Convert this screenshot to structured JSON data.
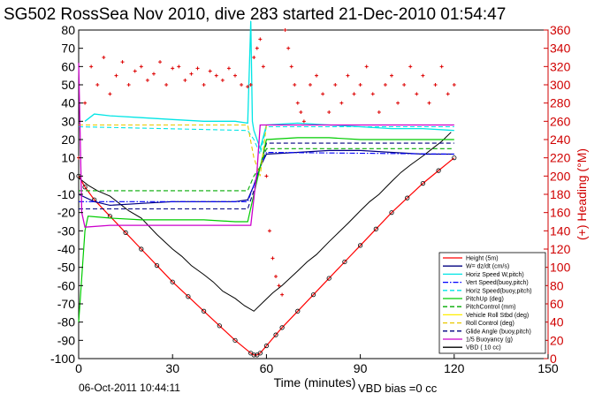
{
  "figure": {
    "title": "SG502 RossSea Nov 2010, dive 283 started 21-Dec-2010 01:54:47",
    "footer_date": "06-Oct-2011 10:44:11",
    "footer_note": "VBD bias =0 cc"
  },
  "chart_data": {
    "type": "line",
    "xlabel": "Time (minutes)",
    "ylabel": "",
    "y2label": "(+) Heading (°M)",
    "xlim": [
      0,
      150
    ],
    "ylim": [
      -100,
      80
    ],
    "y2lim": [
      0,
      360
    ],
    "xticks": [
      "0",
      "30",
      "60",
      "90",
      "120",
      "150"
    ],
    "yticks": [
      "80",
      "70",
      "60",
      "50",
      "40",
      "30",
      "20",
      "10",
      "0",
      "-10",
      "-20",
      "-30",
      "-40",
      "-50",
      "-60",
      "-70",
      "-80",
      "-90",
      "-100"
    ],
    "y2ticks": [
      "360",
      "340",
      "320",
      "300",
      "280",
      "260",
      "240",
      "220",
      "200",
      "180",
      "160",
      "140",
      "120",
      "100",
      "80",
      "60",
      "40",
      "20",
      "0"
    ],
    "grid": false,
    "legend_position": "bottom-right",
    "colors": {
      "height": "#ff0000",
      "w": "#000080",
      "horiz_speed": "#00e5e5",
      "vert_speed_buoy": "#0000ff",
      "horiz_speed_buoy": "#00e5e5",
      "pitch_up": "#00cc00",
      "pitch_control": "#00aa00",
      "roll": "#ffee00",
      "roll_control": "#e8c800",
      "glide_angle": "#000080",
      "buoyancy": "#cc00cc",
      "vbd": "#000000",
      "heading": "#dd0000",
      "right_axis": "#d00000"
    },
    "legend": [
      {
        "name": "Height (5m)",
        "style": "solid",
        "color": "#ff0000"
      },
      {
        "name": "W= dz/dt (cm/s)",
        "style": "solid",
        "color": "#000080"
      },
      {
        "name": "Horiz Speed W,pitch)",
        "style": "solid",
        "color": "#00e5e5"
      },
      {
        "name": "Vert Speed(buoy,pitch)",
        "style": "dashdot",
        "color": "#0000ff"
      },
      {
        "name": "Horiz Speed(buoy,pitch)",
        "style": "dashed",
        "color": "#00e5e5"
      },
      {
        "name": "PitchUp (deg)",
        "style": "solid",
        "color": "#00cc00"
      },
      {
        "name": "PitchControl (mm)",
        "style": "dashed",
        "color": "#00aa00"
      },
      {
        "name": "Vehicle Roll Stbd (deg)",
        "style": "solid",
        "color": "#ffee00"
      },
      {
        "name": "Roll Control (deg)",
        "style": "dashed",
        "color": "#e8c800"
      },
      {
        "name": "Glide Angle (buoy,pitch)",
        "style": "dashed",
        "color": "#000080"
      },
      {
        "name": "1/5 Buoyancy (g)",
        "style": "solid",
        "color": "#cc00cc"
      },
      {
        "name": "VBD ( 10 cc)",
        "style": "solid",
        "color": "#000000"
      }
    ],
    "series": [
      {
        "key": "height",
        "x": [
          0,
          2,
          5,
          10,
          15,
          20,
          25,
          30,
          35,
          40,
          45,
          50,
          55,
          56,
          57,
          58,
          60,
          63,
          65,
          70,
          75,
          80,
          85,
          90,
          95,
          100,
          105,
          110,
          115,
          120
        ],
        "y": [
          0,
          -6,
          -13,
          -22,
          -31,
          -40,
          -49,
          -58,
          -66,
          -74,
          -82,
          -90,
          -97,
          -98,
          -98,
          -97,
          -93,
          -87,
          -83,
          -74,
          -65,
          -56,
          -47,
          -38,
          -29,
          -20,
          -12,
          -4,
          3,
          10
        ]
      },
      {
        "key": "vbd",
        "x": [
          0,
          3,
          6,
          10,
          13,
          16,
          20,
          25,
          30,
          33,
          36,
          40,
          43,
          46,
          50,
          53,
          56,
          59,
          62,
          65,
          70,
          73,
          76,
          80,
          83,
          86,
          90,
          93,
          96,
          100,
          103,
          106,
          110,
          113,
          116,
          119
        ],
        "y": [
          -1,
          -5,
          -8,
          -11,
          -15,
          -19,
          -23,
          -32,
          -40,
          -44,
          -49,
          -54,
          -58,
          -63,
          -67,
          -71,
          -74,
          -69,
          -64,
          -60,
          -52,
          -47,
          -43,
          -36,
          -31,
          -26,
          -19,
          -14,
          -10,
          -3,
          2,
          6,
          11,
          15,
          19,
          24
        ]
      },
      {
        "key": "horiz_speed",
        "x": [
          2,
          5,
          10,
          20,
          30,
          40,
          50,
          54,
          55,
          55.5,
          56,
          58,
          60,
          70,
          80,
          90,
          100,
          110,
          120
        ],
        "y": [
          30,
          34,
          33,
          32,
          31,
          30,
          30,
          29,
          85,
          30,
          25,
          15,
          28,
          29,
          28,
          27,
          26,
          26,
          25
        ]
      },
      {
        "key": "horiz_speed_buoy",
        "x": [
          0,
          54,
          56,
          58,
          60,
          120
        ],
        "y": [
          27,
          25,
          20,
          12,
          27,
          27
        ]
      },
      {
        "key": "w",
        "x": [
          0,
          5,
          10,
          20,
          30,
          40,
          50,
          54,
          56,
          58,
          60,
          70,
          80,
          90,
          100,
          110,
          120
        ],
        "y": [
          -10,
          -14,
          -16,
          -15,
          -14,
          -14,
          -14,
          -13,
          -5,
          5,
          12,
          13,
          14,
          14,
          13,
          12,
          12
        ]
      },
      {
        "key": "vert_speed_buoy",
        "x": [
          0,
          54,
          56,
          58,
          60,
          120
        ],
        "y": [
          -14,
          -14,
          -5,
          5,
          13,
          12
        ]
      },
      {
        "key": "glide_angle",
        "x": [
          0,
          54,
          56,
          58,
          60,
          120
        ],
        "y": [
          -18,
          -18,
          -8,
          5,
          18,
          18
        ]
      },
      {
        "key": "pitch_up",
        "x": [
          0,
          2,
          3,
          10,
          20,
          30,
          40,
          50,
          54,
          56,
          58,
          60,
          70,
          80,
          90,
          100,
          110,
          120
        ],
        "y": [
          -80,
          -30,
          -22,
          -23,
          -24,
          -24,
          -24,
          -25,
          -25,
          -10,
          5,
          20,
          21,
          21,
          20,
          20,
          20,
          20
        ]
      },
      {
        "key": "pitch_control",
        "x": [
          0,
          54,
          56,
          58,
          60,
          120
        ],
        "y": [
          -8,
          -8,
          0,
          5,
          15,
          15
        ]
      },
      {
        "key": "roll_control",
        "x": [
          0,
          54,
          56,
          58,
          60,
          120
        ],
        "y": [
          28,
          28,
          10,
          0,
          28,
          28
        ]
      },
      {
        "key": "buoyancy",
        "x": [
          0,
          1,
          2,
          10,
          20,
          30,
          40,
          50,
          54,
          55,
          57,
          58,
          60,
          70,
          80,
          90,
          100,
          110,
          120
        ],
        "y": [
          62,
          -20,
          -28,
          -27,
          -27,
          -27,
          -27,
          -27,
          -27,
          -27,
          3,
          28,
          28,
          28,
          28,
          28,
          28,
          28,
          28
        ]
      },
      {
        "key": "heading",
        "x": [
          0,
          2,
          4,
          6,
          8,
          10,
          12,
          14,
          16,
          18,
          20,
          22,
          24,
          26,
          28,
          30,
          32,
          34,
          36,
          38,
          40,
          42,
          44,
          46,
          48,
          50,
          52,
          54,
          55,
          56,
          57,
          58,
          59,
          60,
          61,
          62,
          63,
          64,
          65,
          66,
          67,
          68,
          69,
          70,
          71,
          72,
          74,
          76,
          78,
          80,
          82,
          84,
          86,
          88,
          90,
          92,
          94,
          96,
          98,
          100,
          102,
          104,
          106,
          108,
          110,
          112,
          114,
          116,
          118,
          120
        ],
        "y": [
          220,
          280,
          320,
          300,
          330,
          290,
          310,
          325,
          300,
          315,
          320,
          305,
          312,
          325,
          300,
          318,
          320,
          305,
          312,
          318,
          300,
          315,
          310,
          305,
          318,
          310,
          300,
          298,
          300,
          330,
          340,
          350,
          320,
          200,
          140,
          110,
          90,
          80,
          70,
          360,
          340,
          320,
          300,
          280,
          270,
          260,
          300,
          310,
          290,
          270,
          300,
          280,
          310,
          290,
          300,
          320,
          290,
          270,
          300,
          310,
          280,
          300,
          320,
          290,
          310,
          280,
          300,
          320,
          290,
          300
        ]
      }
    ]
  }
}
